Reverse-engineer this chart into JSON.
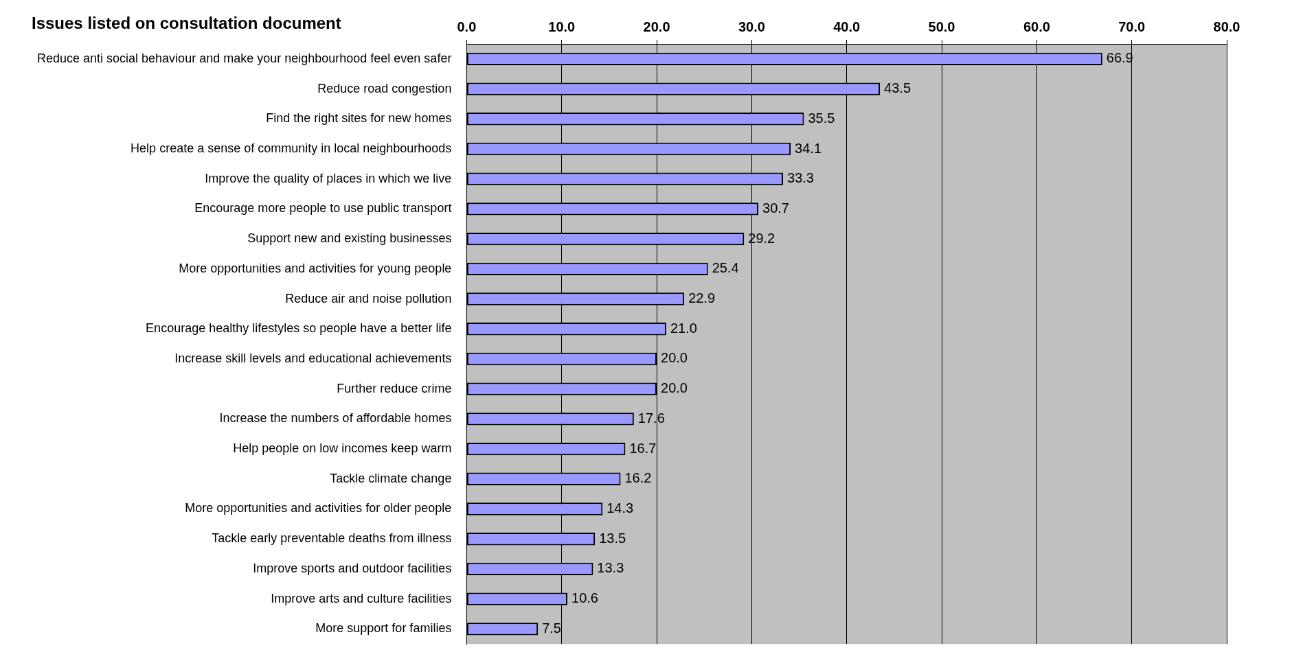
{
  "chart_data": {
    "type": "bar",
    "orientation": "horizontal",
    "title": "Issues listed on consultation document",
    "categories": [
      "Reduce anti social behaviour and make your neighbourhood feel even safer",
      "Reduce road congestion",
      "Find the right sites for new homes",
      "Help create a sense of community in local neighbourhoods",
      "Improve the quality of places in which we live",
      "Encourage more people to use public transport",
      "Support new and existing businesses",
      "More opportunities and activities for young people",
      "Reduce air and noise pollution",
      "Encourage healthy lifestyles so people have a better life",
      "Increase skill levels and educational achievements",
      "Further reduce crime",
      "Increase the numbers of affordable homes",
      "Help people on low incomes keep warm",
      "Tackle climate change",
      "More opportunities and activities for older people",
      "Tackle early preventable deaths from illness",
      "Improve sports and outdoor facilities",
      "Improve arts and culture facilities",
      "More support for families"
    ],
    "values": [
      66.9,
      43.5,
      35.5,
      34.1,
      33.3,
      30.7,
      29.2,
      25.4,
      22.9,
      21.0,
      20.0,
      20.0,
      17.6,
      16.7,
      16.2,
      14.3,
      13.5,
      13.3,
      10.6,
      7.5
    ],
    "value_labels": [
      "66.9",
      "43.5",
      "35.5",
      "34.1",
      "33.3",
      "30.7",
      "29.2",
      "25.4",
      "22.9",
      "21.0",
      "20.0",
      "20.0",
      "17.6",
      "16.7",
      "16.2",
      "14.3",
      "13.5",
      "13.3",
      "10.6",
      "7.5"
    ],
    "color": "#9999ff",
    "xlim": [
      0,
      80
    ],
    "xticks": [
      {
        "value": 0,
        "label": "0.0"
      },
      {
        "value": 10,
        "label": "10.0"
      },
      {
        "value": 20,
        "label": "20.0"
      },
      {
        "value": 30,
        "label": "30.0"
      },
      {
        "value": 40,
        "label": "40.0"
      },
      {
        "value": 50,
        "label": "50.0"
      },
      {
        "value": 60,
        "label": "60.0"
      },
      {
        "value": 70,
        "label": "70.0"
      },
      {
        "value": 80,
        "label": "80.0"
      }
    ],
    "grid": "x",
    "legend": false
  }
}
